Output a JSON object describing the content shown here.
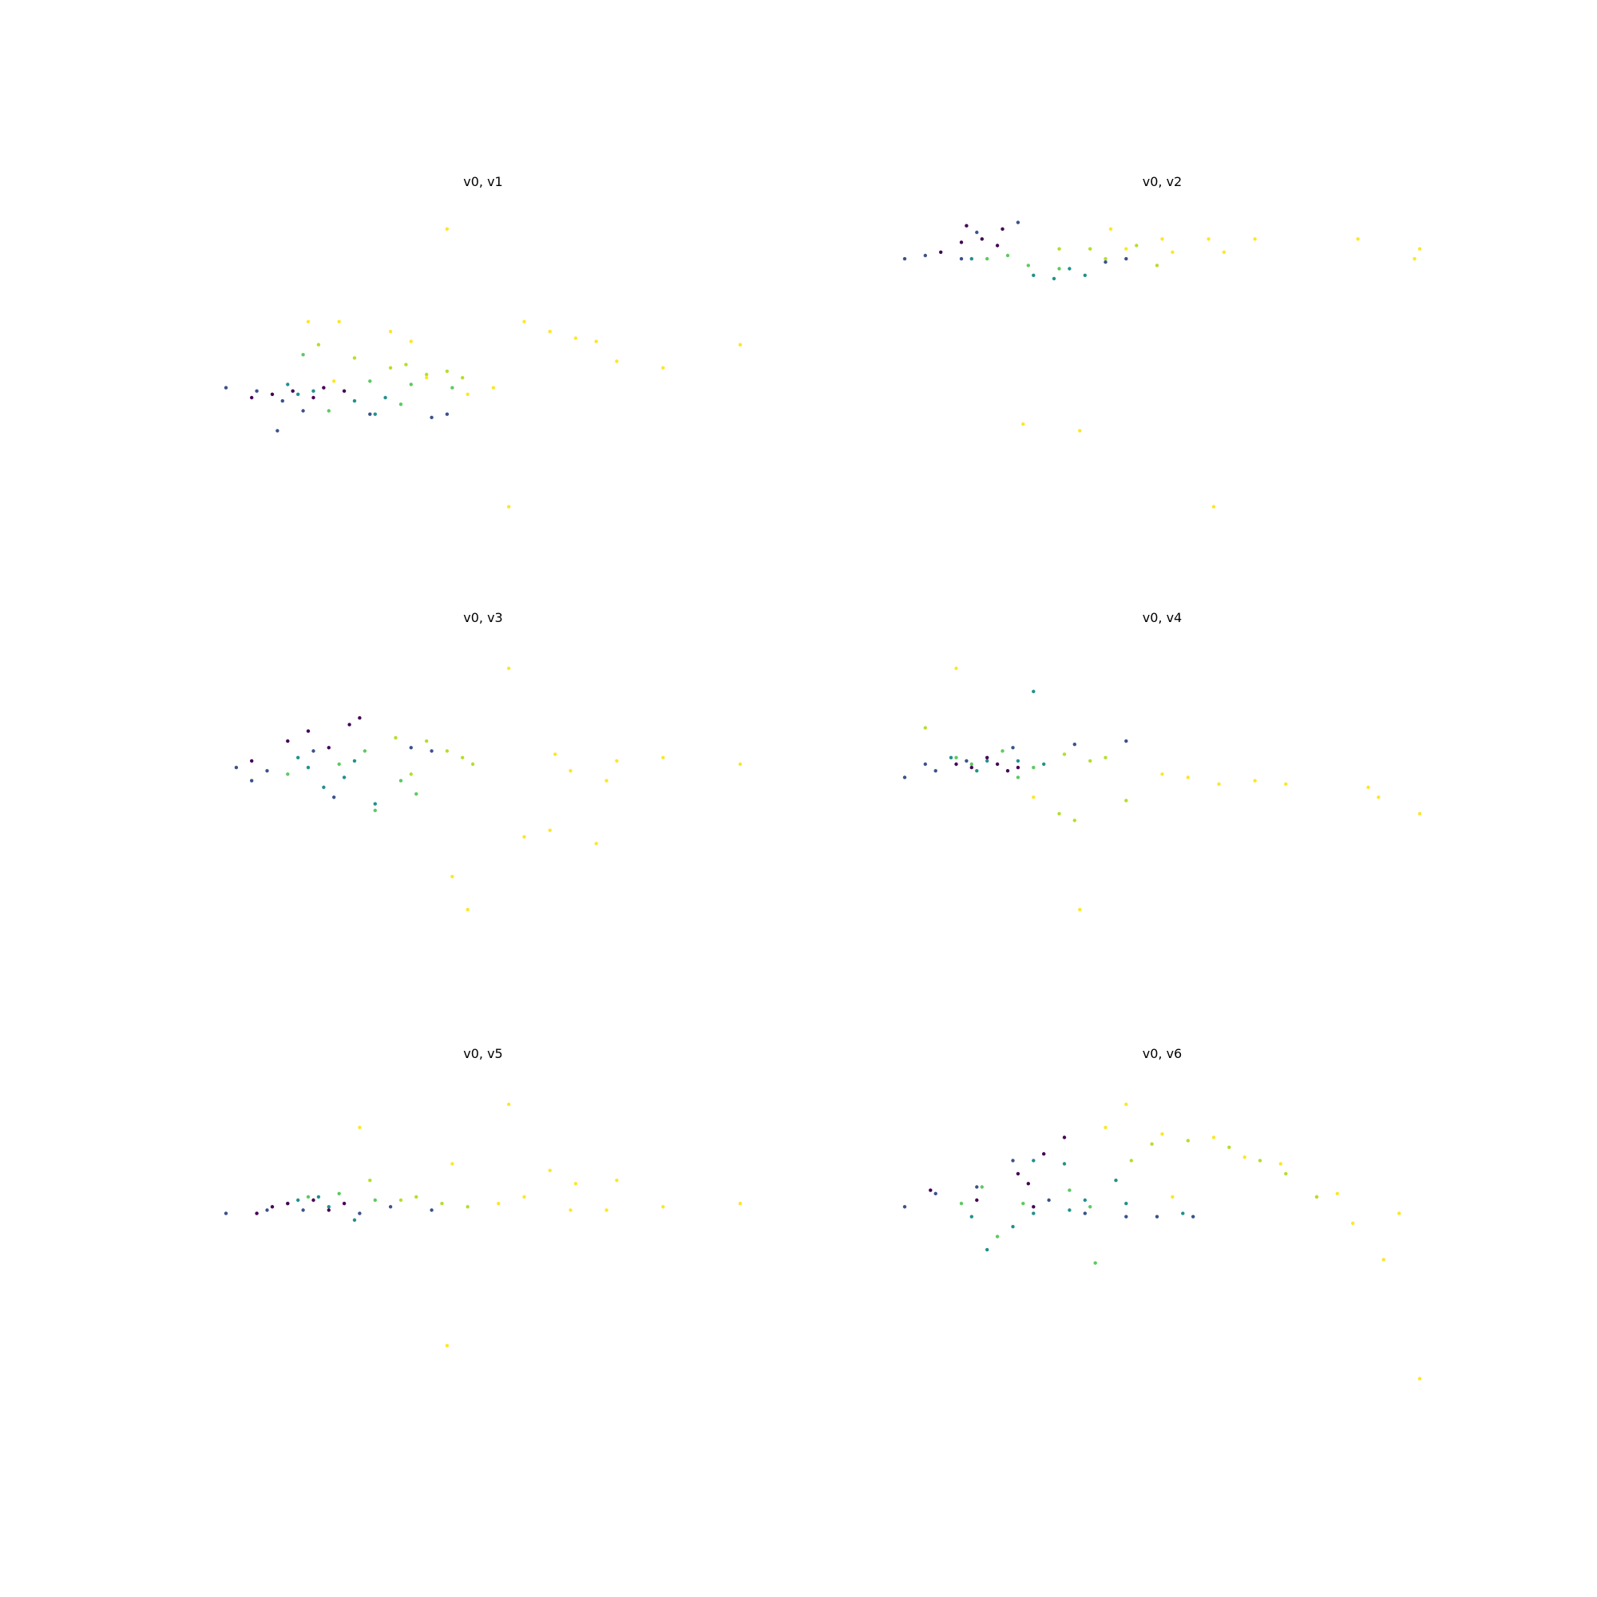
{
  "colormap": [
    "#440154",
    "#3b528b",
    "#21918c",
    "#5ec962",
    "#b5de2b",
    "#fde725"
  ],
  "chart_data": [
    {
      "type": "scatter",
      "title": "v0, v1",
      "xlim": [
        0,
        10
      ],
      "ylim": [
        0,
        10
      ],
      "grid": false,
      "axes_visible": false,
      "points": [
        [
          4.3,
          9.4,
          5
        ],
        [
          1.6,
          6.6,
          5
        ],
        [
          2.2,
          6.6,
          5
        ],
        [
          3.2,
          6.3,
          5
        ],
        [
          3.6,
          6.0,
          5
        ],
        [
          6.3,
          6.3,
          5
        ],
        [
          6.8,
          6.1,
          5
        ],
        [
          7.2,
          6.0,
          5
        ],
        [
          7.6,
          5.4,
          5
        ],
        [
          5.8,
          6.6,
          5
        ],
        [
          8.5,
          5.2,
          5
        ],
        [
          10.0,
          5.9,
          5
        ],
        [
          2.1,
          4.8,
          5
        ],
        [
          3.9,
          4.9,
          5
        ],
        [
          4.7,
          4.4,
          5
        ],
        [
          5.2,
          4.6,
          5
        ],
        [
          5.5,
          1.0,
          5
        ],
        [
          1.8,
          5.9,
          4
        ],
        [
          2.5,
          5.5,
          4
        ],
        [
          3.5,
          5.3,
          4
        ],
        [
          4.3,
          5.1,
          4
        ],
        [
          4.6,
          4.9,
          4
        ],
        [
          3.2,
          5.2,
          4
        ],
        [
          3.9,
          5.0,
          4
        ],
        [
          3.6,
          4.7,
          3
        ],
        [
          4.4,
          4.6,
          3
        ],
        [
          2.8,
          4.8,
          3
        ],
        [
          1.5,
          5.6,
          3
        ],
        [
          2.0,
          3.9,
          3
        ],
        [
          3.4,
          4.1,
          3
        ],
        [
          1.2,
          4.7,
          2
        ],
        [
          1.7,
          4.5,
          2
        ],
        [
          2.5,
          4.2,
          2
        ],
        [
          2.9,
          3.8,
          2
        ],
        [
          3.1,
          4.3,
          2
        ],
        [
          1.4,
          4.4,
          2
        ],
        [
          0.0,
          4.6,
          1
        ],
        [
          0.6,
          4.5,
          1
        ],
        [
          1.5,
          3.9,
          1
        ],
        [
          2.8,
          3.8,
          1
        ],
        [
          4.0,
          3.7,
          1
        ],
        [
          1.0,
          3.3,
          1
        ],
        [
          4.3,
          3.8,
          1
        ],
        [
          1.1,
          4.2,
          1
        ],
        [
          0.5,
          4.3,
          0
        ],
        [
          1.3,
          4.5,
          0
        ],
        [
          1.7,
          4.3,
          0
        ],
        [
          2.3,
          4.5,
          0
        ],
        [
          0.9,
          4.4,
          0
        ],
        [
          1.9,
          4.6,
          0
        ]
      ]
    },
    {
      "type": "scatter",
      "title": "v0, v2",
      "xlim": [
        0,
        10
      ],
      "ylim": [
        0,
        10
      ],
      "grid": false,
      "axes_visible": false,
      "points": [
        [
          4.0,
          9.4,
          5
        ],
        [
          5.0,
          9.1,
          5
        ],
        [
          5.9,
          9.1,
          5
        ],
        [
          6.8,
          9.1,
          5
        ],
        [
          8.8,
          9.1,
          5
        ],
        [
          10.0,
          8.8,
          5
        ],
        [
          4.3,
          8.8,
          5
        ],
        [
          5.2,
          8.7,
          5
        ],
        [
          6.2,
          8.7,
          5
        ],
        [
          9.9,
          8.5,
          5
        ],
        [
          2.3,
          3.5,
          5
        ],
        [
          3.4,
          3.3,
          5
        ],
        [
          6.0,
          1.0,
          5
        ],
        [
          3.6,
          8.8,
          4
        ],
        [
          4.5,
          8.9,
          4
        ],
        [
          3.0,
          8.8,
          4
        ],
        [
          3.9,
          8.5,
          4
        ],
        [
          4.9,
          8.3,
          4
        ],
        [
          2.0,
          8.6,
          3
        ],
        [
          2.4,
          8.3,
          3
        ],
        [
          3.0,
          8.2,
          3
        ],
        [
          1.6,
          8.5,
          3
        ],
        [
          2.5,
          8.0,
          2
        ],
        [
          3.2,
          8.2,
          2
        ],
        [
          3.5,
          8.0,
          2
        ],
        [
          1.3,
          8.5,
          2
        ],
        [
          2.9,
          7.9,
          2
        ],
        [
          0.0,
          8.5,
          1
        ],
        [
          0.4,
          8.6,
          1
        ],
        [
          1.4,
          9.3,
          1
        ],
        [
          2.2,
          9.6,
          1
        ],
        [
          4.3,
          8.5,
          1
        ],
        [
          3.9,
          8.4,
          1
        ],
        [
          1.1,
          8.5,
          1
        ],
        [
          0.7,
          8.7,
          0
        ],
        [
          1.5,
          9.1,
          0
        ],
        [
          1.9,
          9.4,
          0
        ],
        [
          1.8,
          8.9,
          0
        ],
        [
          1.1,
          9.0,
          0
        ],
        [
          1.2,
          9.5,
          0
        ]
      ]
    },
    {
      "type": "scatter",
      "title": "v0, v3",
      "xlim": [
        0,
        10
      ],
      "ylim": [
        0,
        10
      ],
      "grid": false,
      "axes_visible": false,
      "points": [
        [
          5.5,
          9.3,
          5
        ],
        [
          7.6,
          6.5,
          5
        ],
        [
          6.3,
          4.4,
          5
        ],
        [
          5.8,
          4.2,
          5
        ],
        [
          7.2,
          4.0,
          5
        ],
        [
          4.7,
          2.0,
          5
        ],
        [
          4.4,
          3.0,
          5
        ],
        [
          10.0,
          6.4,
          5
        ],
        [
          8.5,
          6.6,
          5
        ],
        [
          6.7,
          6.2,
          5
        ],
        [
          7.4,
          5.9,
          5
        ],
        [
          6.4,
          6.7,
          5
        ],
        [
          3.9,
          7.1,
          4
        ],
        [
          4.3,
          6.8,
          4
        ],
        [
          4.8,
          6.4,
          4
        ],
        [
          3.3,
          7.2,
          4
        ],
        [
          3.6,
          6.1,
          4
        ],
        [
          4.6,
          6.6,
          4
        ],
        [
          2.7,
          6.8,
          3
        ],
        [
          2.2,
          6.4,
          3
        ],
        [
          3.4,
          5.9,
          3
        ],
        [
          3.7,
          5.5,
          3
        ],
        [
          2.9,
          5.0,
          3
        ],
        [
          1.2,
          6.1,
          3
        ],
        [
          1.6,
          6.3,
          2
        ],
        [
          2.3,
          6.0,
          2
        ],
        [
          2.9,
          5.2,
          2
        ],
        [
          1.9,
          5.7,
          2
        ],
        [
          2.5,
          6.5,
          2
        ],
        [
          1.4,
          6.6,
          2
        ],
        [
          0.2,
          6.3,
          1
        ],
        [
          0.8,
          6.2,
          1
        ],
        [
          1.7,
          6.8,
          1
        ],
        [
          3.6,
          6.9,
          1
        ],
        [
          4.0,
          6.8,
          1
        ],
        [
          2.1,
          5.4,
          1
        ],
        [
          0.5,
          5.9,
          1
        ],
        [
          0.5,
          6.5,
          0
        ],
        [
          1.2,
          7.1,
          0
        ],
        [
          1.6,
          7.4,
          0
        ],
        [
          2.4,
          7.6,
          0
        ],
        [
          2.0,
          6.9,
          0
        ],
        [
          2.6,
          7.8,
          0
        ]
      ]
    },
    {
      "type": "scatter",
      "title": "v0, v4",
      "xlim": [
        0,
        10
      ],
      "ylim": [
        0,
        10
      ],
      "grid": false,
      "axes_visible": false,
      "points": [
        [
          1.0,
          9.3,
          5
        ],
        [
          5.0,
          6.1,
          5
        ],
        [
          5.5,
          6.0,
          5
        ],
        [
          6.1,
          5.8,
          5
        ],
        [
          6.8,
          5.9,
          5
        ],
        [
          7.4,
          5.8,
          5
        ],
        [
          9.0,
          5.7,
          5
        ],
        [
          9.2,
          5.4,
          5
        ],
        [
          10.0,
          4.9,
          5
        ],
        [
          3.4,
          2.0,
          5
        ],
        [
          2.5,
          5.4,
          5
        ],
        [
          0.4,
          7.5,
          4
        ],
        [
          3.1,
          6.7,
          4
        ],
        [
          3.6,
          6.5,
          4
        ],
        [
          3.9,
          6.6,
          4
        ],
        [
          3.0,
          4.9,
          4
        ],
        [
          3.3,
          4.7,
          4
        ],
        [
          4.3,
          5.3,
          4
        ],
        [
          1.0,
          6.6,
          3
        ],
        [
          1.9,
          6.8,
          3
        ],
        [
          2.5,
          6.3,
          3
        ],
        [
          2.2,
          6.0,
          3
        ],
        [
          1.3,
          6.4,
          3
        ],
        [
          0.9,
          6.6,
          2
        ],
        [
          1.6,
          6.5,
          2
        ],
        [
          2.2,
          6.5,
          2
        ],
        [
          1.4,
          6.2,
          2
        ],
        [
          2.7,
          6.4,
          2
        ],
        [
          2.5,
          8.6,
          2
        ],
        [
          0.0,
          6.0,
          1
        ],
        [
          0.6,
          6.2,
          1
        ],
        [
          1.2,
          6.5,
          1
        ],
        [
          2.1,
          6.9,
          1
        ],
        [
          3.3,
          7.0,
          1
        ],
        [
          4.3,
          7.1,
          1
        ],
        [
          0.4,
          6.4,
          1
        ],
        [
          1.3,
          6.3,
          0
        ],
        [
          1.8,
          6.4,
          0
        ],
        [
          2.2,
          6.3,
          0
        ],
        [
          1.6,
          6.6,
          0
        ],
        [
          2.0,
          6.2,
          0
        ],
        [
          1.0,
          6.4,
          0
        ]
      ]
    },
    {
      "type": "scatter",
      "title": "v0, v5",
      "xlim": [
        0,
        10
      ],
      "ylim": [
        0,
        10
      ],
      "grid": false,
      "axes_visible": false,
      "points": [
        [
          5.5,
          9.3,
          5
        ],
        [
          4.4,
          7.5,
          5
        ],
        [
          6.3,
          7.3,
          5
        ],
        [
          7.6,
          7.0,
          5
        ],
        [
          6.8,
          6.9,
          5
        ],
        [
          5.8,
          6.5,
          5
        ],
        [
          5.3,
          6.3,
          5
        ],
        [
          6.7,
          6.1,
          5
        ],
        [
          7.4,
          6.1,
          5
        ],
        [
          8.5,
          6.2,
          5
        ],
        [
          10.0,
          6.3,
          5
        ],
        [
          4.3,
          2.0,
          5
        ],
        [
          2.6,
          8.6,
          5
        ],
        [
          3.7,
          6.5,
          4
        ],
        [
          4.2,
          6.3,
          4
        ],
        [
          4.7,
          6.2,
          4
        ],
        [
          2.8,
          7.0,
          4
        ],
        [
          3.4,
          6.4,
          4
        ],
        [
          1.6,
          6.5,
          3
        ],
        [
          2.2,
          6.6,
          3
        ],
        [
          2.9,
          6.4,
          3
        ],
        [
          1.2,
          6.3,
          3
        ],
        [
          1.4,
          6.4,
          2
        ],
        [
          2.0,
          6.2,
          2
        ],
        [
          2.5,
          5.8,
          2
        ],
        [
          1.8,
          6.5,
          2
        ],
        [
          0.0,
          6.0,
          1
        ],
        [
          0.8,
          6.1,
          1
        ],
        [
          1.5,
          6.1,
          1
        ],
        [
          2.6,
          6.0,
          1
        ],
        [
          3.2,
          6.2,
          1
        ],
        [
          4.0,
          6.1,
          1
        ],
        [
          0.6,
          6.0,
          0
        ],
        [
          1.2,
          6.3,
          0
        ],
        [
          1.7,
          6.4,
          0
        ],
        [
          2.3,
          6.3,
          0
        ],
        [
          2.0,
          6.1,
          0
        ],
        [
          0.9,
          6.2,
          0
        ]
      ]
    },
    {
      "type": "scatter",
      "title": "v0, v6",
      "xlim": [
        0,
        10
      ],
      "ylim": [
        0,
        10
      ],
      "grid": false,
      "axes_visible": false,
      "points": [
        [
          4.3,
          9.3,
          5
        ],
        [
          3.9,
          8.6,
          5
        ],
        [
          5.0,
          8.4,
          5
        ],
        [
          6.0,
          8.3,
          5
        ],
        [
          6.6,
          7.7,
          5
        ],
        [
          7.3,
          7.5,
          5
        ],
        [
          8.0,
          6.5,
          5
        ],
        [
          8.4,
          6.6,
          5
        ],
        [
          8.7,
          5.7,
          5
        ],
        [
          9.3,
          4.6,
          5
        ],
        [
          9.6,
          6.0,
          5
        ],
        [
          10.0,
          1.0,
          5
        ],
        [
          5.2,
          6.5,
          5
        ],
        [
          4.8,
          8.1,
          4
        ],
        [
          5.5,
          8.2,
          4
        ],
        [
          6.3,
          8.0,
          4
        ],
        [
          6.9,
          7.6,
          4
        ],
        [
          7.4,
          7.2,
          4
        ],
        [
          8.0,
          6.5,
          4
        ],
        [
          4.4,
          7.6,
          4
        ],
        [
          1.1,
          6.3,
          3
        ],
        [
          1.5,
          6.8,
          3
        ],
        [
          1.8,
          5.3,
          3
        ],
        [
          2.3,
          6.3,
          3
        ],
        [
          3.2,
          6.7,
          3
        ],
        [
          3.6,
          6.2,
          3
        ],
        [
          3.7,
          4.5,
          3
        ],
        [
          1.3,
          5.9,
          2
        ],
        [
          1.6,
          4.9,
          2
        ],
        [
          2.1,
          5.6,
          2
        ],
        [
          2.5,
          6.0,
          2
        ],
        [
          3.1,
          7.5,
          2
        ],
        [
          3.5,
          6.4,
          2
        ],
        [
          4.1,
          7.0,
          2
        ],
        [
          4.3,
          6.3,
          2
        ],
        [
          5.4,
          6.0,
          2
        ],
        [
          3.2,
          6.1,
          2
        ],
        [
          2.5,
          7.6,
          2
        ],
        [
          0.0,
          6.2,
          1
        ],
        [
          0.6,
          6.6,
          1
        ],
        [
          1.4,
          6.8,
          1
        ],
        [
          2.8,
          6.4,
          1
        ],
        [
          3.5,
          6.0,
          1
        ],
        [
          4.3,
          5.9,
          1
        ],
        [
          4.9,
          5.9,
          1
        ],
        [
          5.6,
          5.9,
          1
        ],
        [
          2.1,
          7.6,
          1
        ],
        [
          1.4,
          6.4,
          0
        ],
        [
          2.2,
          7.2,
          0
        ],
        [
          2.7,
          7.8,
          0
        ],
        [
          3.1,
          8.3,
          0
        ],
        [
          2.5,
          6.2,
          0
        ],
        [
          2.4,
          6.9,
          0
        ],
        [
          0.5,
          6.7,
          0
        ]
      ]
    }
  ]
}
